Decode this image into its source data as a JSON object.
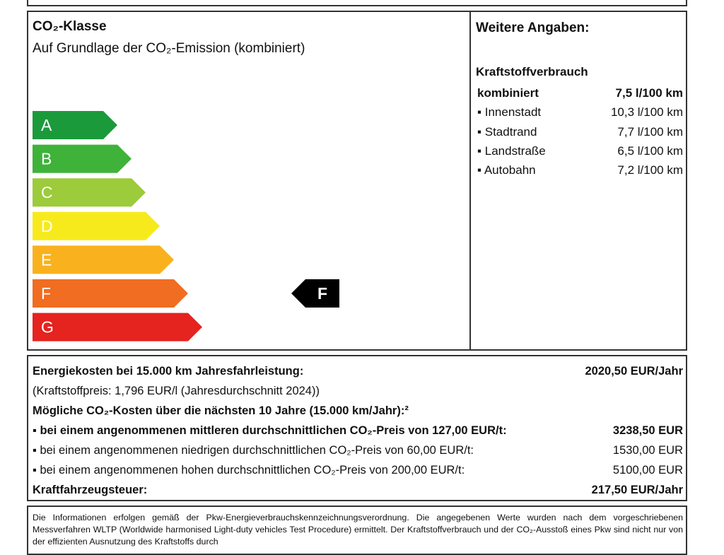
{
  "co2_class": {
    "title": "CO₂-Klasse",
    "subtitle": "Auf Grundlage der CO₂-Emission (kombiniert)",
    "classes": [
      {
        "label": "A",
        "color": "#1b9a3c"
      },
      {
        "label": "B",
        "color": "#3fb23a"
      },
      {
        "label": "C",
        "color": "#9ccb3b"
      },
      {
        "label": "D",
        "color": "#f7ea1c"
      },
      {
        "label": "E",
        "color": "#f9b21e"
      },
      {
        "label": "F",
        "color": "#f06d21"
      },
      {
        "label": "G",
        "color": "#e5231f"
      }
    ],
    "current": "F"
  },
  "further": {
    "title": "Weitere Angaben:",
    "section": "Kraftstoffverbrauch",
    "rows": [
      {
        "label": "kombiniert",
        "value": "7,5 l/100 km",
        "bold": true,
        "bullet": false
      },
      {
        "label": "Innenstadt",
        "value": "10,3 l/100 km",
        "bold": false,
        "bullet": true
      },
      {
        "label": "Stadtrand",
        "value": "7,7 l/100 km",
        "bold": false,
        "bullet": true
      },
      {
        "label": "Landstraße",
        "value": "6,5 l/100 km",
        "bold": false,
        "bullet": true
      },
      {
        "label": "Autobahn",
        "value": "7,2 l/100 km",
        "bold": false,
        "bullet": true
      }
    ]
  },
  "costs": {
    "rows": [
      {
        "label": "Energiekosten bei 15.000 km Jahresfahrleistung:",
        "value": "2020,50 EUR/Jahr",
        "bold": true,
        "bullet": false
      },
      {
        "label": "(Kraftstoffpreis: 1,796 EUR/l (Jahresdurchschnitt 2024))",
        "bold": false,
        "bullet": false
      },
      {
        "label": "Mögliche CO₂-Kosten über die nächsten 10 Jahre (15.000 km/Jahr):²",
        "bold": true,
        "bullet": false
      },
      {
        "label": "bei einem angenommenen mittleren durchschnittlichen CO₂-Preis von 127,00 EUR/t:",
        "value": "3238,50 EUR",
        "bold": true,
        "bullet": true
      },
      {
        "label": "bei einem angenommenen niedrigen durchschnittlichen CO₂-Preis von 60,00 EUR/t:",
        "value": "1530,00 EUR",
        "bold": false,
        "bullet": true
      },
      {
        "label": "bei einem angenommenen hohen durchschnittlichen CO₂-Preis von 200,00 EUR/t:",
        "value": "5100,00 EUR",
        "bold": false,
        "bullet": true
      },
      {
        "label": "Kraftfahrzeugsteuer:",
        "value": "217,50 EUR/Jahr",
        "bold": true,
        "bullet": false
      }
    ]
  },
  "footnote": "Die Informationen erfolgen gemäß der Pkw-Energieverbrauchskennzeichnungsverordnung. Die angegebenen Werte wurden nach dem vorgeschriebenen Messverfahren WLTP (Worldwide harmonised Light-duty vehicles Test Procedure) ermittelt. Der Kraftstoffverbrauch und der CO₂-Ausstoß eines Pkw sind nicht nur von der effizienten Ausnutzung des Kraftstoffs durch"
}
